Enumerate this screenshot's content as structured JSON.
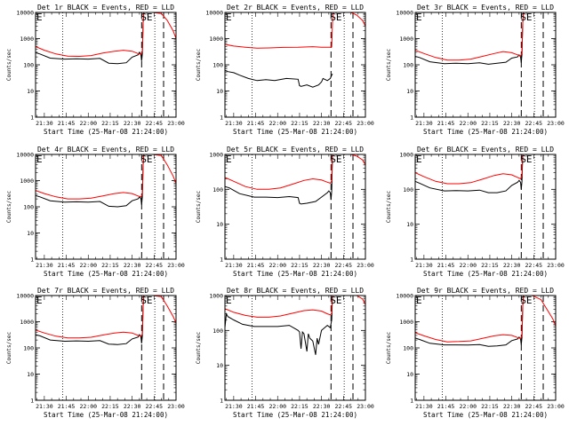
{
  "time_ticks": [
    "21:30",
    "21:45",
    "22:00",
    "22:15",
    "22:30",
    "22:45",
    "23:00"
  ],
  "xlabel": "Start Time (25-Mar-08 21:24:00)",
  "ylabel": "Counts/sec",
  "colors": {
    "events": "#000000",
    "lld": "#ff0000"
  },
  "chart_data": [
    {
      "type": "line",
      "title": "Det 1r BLACK = Events, RED = LLD",
      "ymax": 10000,
      "yticks": [
        "1",
        "10",
        "100",
        "1000",
        "10000"
      ],
      "xlim_min": [
        0,
        96
      ],
      "dotted_x_min": [
        18.5,
        81.5
      ],
      "dashed_x_min": [
        72.5,
        87.5
      ],
      "annotation": "SE",
      "grid": false,
      "yscale": "log",
      "series": [
        {
          "name": "Events",
          "color": "#000000",
          "x": [
            0,
            3,
            10,
            20,
            28,
            36,
            44,
            50,
            56,
            62,
            66,
            70,
            71,
            72,
            72.5,
            73,
            73.5,
            74
          ],
          "y": [
            290,
            260,
            180,
            165,
            170,
            165,
            175,
            115,
            110,
            120,
            195,
            240,
            300,
            240,
            140,
            260,
            4000,
            10000
          ]
        },
        {
          "name": "LLD",
          "color": "#ff0000",
          "x": [
            0,
            6,
            14,
            22,
            30,
            38,
            46,
            54,
            60,
            66,
            70,
            72,
            72.5,
            73,
            73.5,
            74,
            80,
            86,
            90,
            94,
            96
          ],
          "y": [
            500,
            360,
            260,
            215,
            210,
            225,
            280,
            330,
            360,
            330,
            270,
            250,
            280,
            320,
            4000,
            10000,
            10000,
            9000,
            5000,
            2000,
            1000
          ]
        }
      ]
    },
    {
      "type": "line",
      "title": "Det 2r BLACK = Events, RED = LLD",
      "ymax": 10000,
      "yticks": [
        "1",
        "10",
        "100",
        "1000",
        "10000"
      ],
      "xlim_min": [
        0,
        96
      ],
      "dotted_x_min": [
        18.5,
        81.5
      ],
      "dashed_x_min": [
        72.5,
        87.5
      ],
      "annotation": "SE",
      "grid": false,
      "yscale": "log",
      "series": [
        {
          "name": "Events",
          "color": "#000000",
          "x": [
            0,
            2,
            6,
            10,
            16,
            22,
            28,
            34,
            42,
            50,
            51,
            52,
            56,
            60,
            64,
            66,
            67,
            70,
            72,
            73,
            73.5
          ],
          "y": [
            60,
            55,
            50,
            40,
            30,
            25,
            27,
            25,
            30,
            28,
            16,
            15,
            17,
            14,
            17,
            22,
            30,
            25,
            30,
            40,
            45
          ]
        },
        {
          "name": "LLD",
          "color": "#ff0000",
          "x": [
            0,
            6,
            14,
            22,
            30,
            40,
            50,
            60,
            66,
            72,
            73,
            73.5,
            74,
            80,
            86,
            90,
            94,
            96
          ],
          "y": [
            600,
            520,
            470,
            430,
            440,
            460,
            470,
            490,
            470,
            470,
            480,
            4000,
            10000,
            10000,
            10000,
            8000,
            5000,
            3000
          ]
        }
      ]
    },
    {
      "type": "line",
      "title": "Det 3r BLACK = Events, RED = LLD",
      "ymax": 10000,
      "yticks": [
        "1",
        "10",
        "100",
        "1000",
        "10000"
      ],
      "xlim_min": [
        0,
        96
      ],
      "dotted_x_min": [
        18.5,
        81.5
      ],
      "dashed_x_min": [
        72.5,
        87.5
      ],
      "annotation": "SE",
      "grid": false,
      "yscale": "log",
      "series": [
        {
          "name": "Events",
          "color": "#000000",
          "x": [
            0,
            3,
            10,
            20,
            28,
            36,
            44,
            50,
            56,
            62,
            66,
            70,
            71,
            72,
            72.5,
            73,
            73.5,
            74
          ],
          "y": [
            210,
            190,
            130,
            110,
            115,
            110,
            120,
            105,
            115,
            125,
            180,
            200,
            240,
            200,
            120,
            250,
            4000,
            10000
          ]
        },
        {
          "name": "LLD",
          "color": "#ff0000",
          "x": [
            0,
            6,
            14,
            22,
            30,
            38,
            46,
            54,
            60,
            66,
            70,
            72,
            72.5,
            73,
            73.5,
            74,
            80,
            86,
            90,
            94,
            96
          ],
          "y": [
            360,
            270,
            190,
            150,
            150,
            165,
            210,
            270,
            320,
            290,
            240,
            220,
            240,
            290,
            4000,
            10000,
            10000,
            10000,
            10000,
            10000,
            10000
          ]
        }
      ]
    },
    {
      "type": "line",
      "title": "Det 4r BLACK = Events, RED = LLD",
      "ymax": 10000,
      "yticks": [
        "1",
        "10",
        "100",
        "1000",
        "10000"
      ],
      "xlim_min": [
        0,
        96
      ],
      "dotted_x_min": [
        18.5,
        81.5
      ],
      "dashed_x_min": [
        72.5,
        87.5
      ],
      "annotation": "SE",
      "grid": false,
      "yscale": "log",
      "series": [
        {
          "name": "Events",
          "color": "#000000",
          "x": [
            0,
            3,
            10,
            20,
            28,
            36,
            44,
            50,
            56,
            62,
            66,
            70,
            71,
            72,
            72.5,
            73,
            73.5,
            74
          ],
          "y": [
            270,
            240,
            170,
            150,
            155,
            150,
            160,
            105,
            100,
            110,
            170,
            200,
            240,
            200,
            120,
            240,
            4000,
            10000
          ]
        },
        {
          "name": "LLD",
          "color": "#ff0000",
          "x": [
            0,
            6,
            14,
            22,
            30,
            38,
            46,
            54,
            60,
            66,
            70,
            72,
            72.5,
            73,
            73.5,
            74,
            80,
            86,
            90,
            94,
            96
          ],
          "y": [
            420,
            320,
            240,
            200,
            200,
            215,
            260,
            320,
            350,
            320,
            260,
            240,
            260,
            300,
            4000,
            10000,
            10000,
            9000,
            4000,
            1500,
            800
          ]
        }
      ]
    },
    {
      "type": "line",
      "title": "Det 5r BLACK = Events, RED = LLD",
      "ymax": 1000,
      "yticks": [
        "1",
        "10",
        "100",
        "1000"
      ],
      "xlim_min": [
        0,
        96
      ],
      "dotted_x_min": [
        18.5,
        81.5
      ],
      "dashed_x_min": [
        72.5,
        87.5
      ],
      "annotation": "SE",
      "grid": false,
      "yscale": "log",
      "series": [
        {
          "name": "Events",
          "color": "#000000",
          "x": [
            0,
            3,
            10,
            20,
            28,
            36,
            44,
            50,
            51,
            52,
            56,
            62,
            66,
            70,
            71,
            72,
            72.5,
            73,
            73.5,
            74
          ],
          "y": [
            120,
            110,
            75,
            60,
            60,
            58,
            62,
            58,
            40,
            38,
            40,
            45,
            60,
            80,
            90,
            80,
            50,
            90,
            1000,
            1000
          ]
        },
        {
          "name": "LLD",
          "color": "#ff0000",
          "x": [
            0,
            6,
            14,
            22,
            30,
            38,
            46,
            54,
            60,
            66,
            70,
            72,
            72.5,
            73,
            73.5,
            74,
            80,
            86,
            90,
            94,
            96
          ],
          "y": [
            220,
            170,
            120,
            100,
            100,
            110,
            140,
            180,
            200,
            185,
            160,
            150,
            160,
            180,
            1000,
            1000,
            1000,
            1000,
            900,
            700,
            500
          ]
        }
      ]
    },
    {
      "type": "line",
      "title": "Det 6r BLACK = Events, RED = LLD",
      "ymax": 1000,
      "yticks": [
        "1",
        "10",
        "100",
        "1000"
      ],
      "xlim_min": [
        0,
        96
      ],
      "dotted_x_min": [
        18.5,
        81.5
      ],
      "dashed_x_min": [
        72.5,
        87.5
      ],
      "annotation": "SE",
      "grid": false,
      "yscale": "log",
      "series": [
        {
          "name": "Events",
          "color": "#000000",
          "x": [
            0,
            3,
            10,
            20,
            28,
            36,
            44,
            50,
            56,
            62,
            66,
            70,
            71,
            72,
            72.5,
            73,
            73.5,
            74
          ],
          "y": [
            170,
            150,
            110,
            90,
            92,
            90,
            95,
            80,
            80,
            90,
            130,
            160,
            180,
            160,
            100,
            170,
            1000,
            1000
          ]
        },
        {
          "name": "LLD",
          "color": "#ff0000",
          "x": [
            0,
            6,
            14,
            22,
            30,
            38,
            46,
            54,
            60,
            66,
            70,
            72,
            72.5,
            73,
            73.5,
            74,
            80,
            86,
            90,
            94,
            96
          ],
          "y": [
            300,
            230,
            170,
            145,
            145,
            155,
            195,
            250,
            280,
            260,
            220,
            200,
            220,
            250,
            1000,
            1000,
            1000,
            1000,
            1000,
            1000,
            1000
          ]
        }
      ]
    },
    {
      "type": "line",
      "title": "Det 7r BLACK = Events, RED = LLD",
      "ymax": 10000,
      "yticks": [
        "1",
        "10",
        "100",
        "1000",
        "10000"
      ],
      "xlim_min": [
        0,
        96
      ],
      "dotted_x_min": [
        18.5,
        81.5
      ],
      "dashed_x_min": [
        72.5,
        87.5
      ],
      "annotation": "SE",
      "grid": false,
      "yscale": "log",
      "series": [
        {
          "name": "Events",
          "color": "#000000",
          "x": [
            0,
            3,
            10,
            20,
            28,
            36,
            44,
            50,
            56,
            62,
            66,
            70,
            71,
            72,
            72.5,
            73,
            73.5,
            74
          ],
          "y": [
            320,
            290,
            200,
            180,
            185,
            180,
            190,
            140,
            135,
            145,
            220,
            260,
            320,
            260,
            150,
            280,
            4000,
            10000
          ]
        },
        {
          "name": "LLD",
          "color": "#ff0000",
          "x": [
            0,
            6,
            14,
            22,
            30,
            38,
            46,
            54,
            60,
            66,
            70,
            72,
            72.5,
            73,
            73.5,
            74,
            80,
            86,
            90,
            94,
            96
          ],
          "y": [
            480,
            370,
            280,
            240,
            240,
            255,
            310,
            370,
            400,
            370,
            300,
            280,
            300,
            340,
            4000,
            10000,
            10000,
            9000,
            4000,
            1600,
            900
          ]
        }
      ]
    },
    {
      "type": "line",
      "title": "Det 8r BLACK = Events, RED = LLD",
      "ymax": 1000,
      "yticks": [
        "1",
        "10",
        "100",
        "1000"
      ],
      "xlim_min": [
        0,
        96
      ],
      "dotted_x_min": [
        18.5,
        81.5
      ],
      "dashed_x_min": [
        72.5,
        87.5
      ],
      "annotation": "SE",
      "grid": false,
      "yscale": "log",
      "series": [
        {
          "name": "Events",
          "color": "#000000",
          "x": [
            0,
            1,
            2,
            6,
            12,
            20,
            28,
            36,
            44,
            50,
            51,
            52,
            53,
            54,
            56,
            57,
            58,
            60,
            62,
            63,
            64,
            66,
            70,
            72,
            73,
            73.5
          ],
          "y": [
            120,
            300,
            250,
            200,
            150,
            130,
            130,
            130,
            140,
            100,
            90,
            30,
            90,
            80,
            25,
            80,
            60,
            50,
            20,
            60,
            40,
            100,
            140,
            120,
            200,
            1000
          ]
        },
        {
          "name": "LLD",
          "color": "#ff0000",
          "x": [
            0,
            6,
            14,
            22,
            30,
            38,
            46,
            54,
            60,
            66,
            70,
            72,
            72.5,
            73,
            73.5,
            74,
            80,
            86,
            90,
            94,
            96
          ],
          "y": [
            420,
            330,
            270,
            240,
            240,
            260,
            310,
            370,
            390,
            360,
            300,
            280,
            290,
            320,
            1000,
            1000,
            1000,
            1000,
            1000,
            800,
            550
          ]
        }
      ]
    },
    {
      "type": "line",
      "title": "Det 9r BLACK = Events, RED = LLD",
      "ymax": 10000,
      "yticks": [
        "1",
        "10",
        "100",
        "1000",
        "10000"
      ],
      "xlim_min": [
        0,
        96
      ],
      "dotted_x_min": [
        18.5,
        81.5
      ],
      "dashed_x_min": [
        72.5,
        87.5
      ],
      "annotation": "SE",
      "grid": false,
      "yscale": "log",
      "series": [
        {
          "name": "Events",
          "color": "#000000",
          "x": [
            0,
            3,
            10,
            20,
            28,
            36,
            44,
            50,
            56,
            62,
            66,
            70,
            71,
            72,
            72.5,
            73,
            73.5,
            74
          ],
          "y": [
            240,
            210,
            150,
            130,
            130,
            128,
            135,
            115,
            120,
            130,
            190,
            220,
            260,
            220,
            130,
            250,
            4000,
            10000
          ]
        },
        {
          "name": "LLD",
          "color": "#ff0000",
          "x": [
            0,
            6,
            14,
            22,
            30,
            38,
            46,
            54,
            60,
            66,
            70,
            72,
            72.5,
            73,
            73.5,
            74,
            80,
            86,
            90,
            94,
            96
          ],
          "y": [
            380,
            290,
            210,
            170,
            175,
            185,
            230,
            290,
            320,
            300,
            250,
            230,
            250,
            290,
            4000,
            10000,
            10000,
            7000,
            3000,
            1300,
            700
          ]
        }
      ]
    }
  ]
}
